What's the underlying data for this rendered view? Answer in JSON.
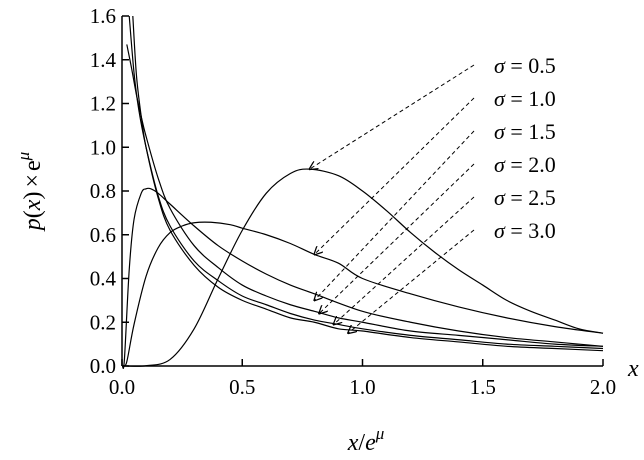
{
  "chart_data": {
    "type": "line",
    "x_axis": {
      "title_parts": [
        "x",
        "/",
        "e",
        "μ"
      ],
      "range": [
        0,
        2.0
      ],
      "ticks": [
        0,
        0.5,
        1.0,
        1.5,
        2.0
      ],
      "tick_labels": [
        "0.0",
        "0.5",
        "1.0",
        "1.5",
        "2.0"
      ],
      "end_label": "x"
    },
    "y_axis": {
      "title_parts": [
        "p",
        "(",
        "x",
        ")",
        "×",
        "e",
        "μ"
      ],
      "range": [
        0,
        1.6
      ],
      "ticks": [
        0,
        0.2,
        0.4,
        0.6,
        0.8,
        1.0,
        1.2,
        1.4,
        1.6
      ],
      "tick_labels": [
        "0.0",
        "0.2",
        "0.4",
        "0.6",
        "0.8",
        "1.0",
        "1.2",
        "1.4",
        "1.6"
      ]
    },
    "grid": false,
    "legend": {
      "placement": "top-right",
      "style": "dashed arrows pointing to curves",
      "labels": [
        "σ = 0.5",
        "σ = 1.0",
        "σ = 1.5",
        "σ = 2.0",
        "σ = 2.5",
        "σ = 3.0"
      ]
    },
    "series": [
      {
        "name": "σ = 0.5",
        "x": [
          0.02,
          0.1,
          0.2,
          0.3,
          0.4,
          0.5,
          0.6,
          0.7,
          0.78,
          0.9,
          1.0,
          1.1,
          1.2,
          1.3,
          1.4,
          1.5,
          1.6,
          1.7,
          1.8,
          1.9,
          2.0
        ],
        "y": [
          0.0,
          0.001,
          0.03,
          0.17,
          0.4,
          0.62,
          0.79,
          0.88,
          0.9,
          0.87,
          0.8,
          0.71,
          0.61,
          0.52,
          0.44,
          0.37,
          0.3,
          0.25,
          0.21,
          0.17,
          0.15
        ],
        "arrow_to": [
          0.78,
          0.9
        ]
      },
      {
        "name": "σ = 1.0",
        "x": [
          0.005,
          0.02,
          0.05,
          0.1,
          0.15,
          0.2,
          0.25,
          0.3,
          0.37,
          0.45,
          0.5,
          0.6,
          0.7,
          0.8,
          0.9,
          1.0,
          1.2,
          1.4,
          1.6,
          1.8,
          2.0
        ],
        "y": [
          0.0,
          0.02,
          0.19,
          0.41,
          0.54,
          0.61,
          0.64,
          0.655,
          0.657,
          0.646,
          0.63,
          0.6,
          0.56,
          0.51,
          0.47,
          0.4,
          0.33,
          0.27,
          0.22,
          0.18,
          0.15
        ],
        "arrow_to": [
          0.8,
          0.51
        ]
      },
      {
        "name": "σ = 1.5",
        "x": [
          0.002,
          0.01,
          0.03,
          0.05,
          0.08,
          0.1,
          0.12,
          0.15,
          0.2,
          0.3,
          0.4,
          0.5,
          0.6,
          0.7,
          0.8,
          1.0,
          1.2,
          1.4,
          1.6,
          1.8,
          2.0
        ],
        "y": [
          0.0,
          0.03,
          0.44,
          0.67,
          0.79,
          0.81,
          0.81,
          0.79,
          0.74,
          0.64,
          0.55,
          0.48,
          0.42,
          0.37,
          0.33,
          0.25,
          0.2,
          0.16,
          0.13,
          0.11,
          0.09
        ],
        "arrow_to": [
          0.8,
          0.3
        ]
      },
      {
        "name": "σ = 2.0",
        "x": [
          0.02,
          0.04,
          0.06,
          0.08,
          0.1,
          0.15,
          0.2,
          0.3,
          0.4,
          0.5,
          0.6,
          0.7,
          0.8,
          0.9,
          1.0,
          1.2,
          1.4,
          1.6,
          1.8,
          2.0
        ],
        "y": [
          1.47,
          1.36,
          1.24,
          1.14,
          1.05,
          0.86,
          0.72,
          0.55,
          0.45,
          0.37,
          0.32,
          0.28,
          0.25,
          0.22,
          0.2,
          0.16,
          0.14,
          0.12,
          0.1,
          0.09
        ],
        "arrow_to": [
          0.82,
          0.24
        ]
      },
      {
        "name": "σ = 2.5",
        "x": [
          0.03,
          0.05,
          0.07,
          0.1,
          0.15,
          0.2,
          0.3,
          0.4,
          0.5,
          0.6,
          0.7,
          0.8,
          0.9,
          1.0,
          1.2,
          1.4,
          1.6,
          1.8,
          2.0
        ],
        "y": [
          1.6,
          1.34,
          1.17,
          1.0,
          0.78,
          0.64,
          0.48,
          0.39,
          0.32,
          0.28,
          0.24,
          0.21,
          0.19,
          0.17,
          0.14,
          0.12,
          0.1,
          0.09,
          0.08
        ],
        "arrow_to": [
          0.88,
          0.19
        ]
      },
      {
        "name": "σ = 3.0",
        "x": [
          0.045,
          0.06,
          0.08,
          0.1,
          0.15,
          0.2,
          0.3,
          0.4,
          0.5,
          0.6,
          0.7,
          0.8,
          0.9,
          1.0,
          1.2,
          1.4,
          1.6,
          1.8,
          2.0
        ],
        "y": [
          1.6,
          1.33,
          1.14,
          1.0,
          0.77,
          0.62,
          0.46,
          0.36,
          0.3,
          0.26,
          0.22,
          0.2,
          0.17,
          0.16,
          0.13,
          0.11,
          0.09,
          0.08,
          0.07
        ],
        "arrow_to": [
          0.94,
          0.15
        ]
      }
    ]
  }
}
